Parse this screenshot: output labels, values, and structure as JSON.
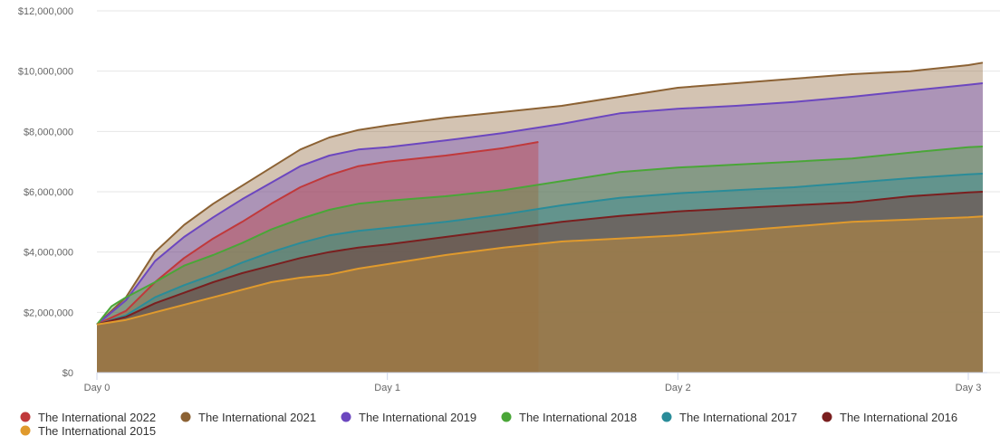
{
  "chart_data": {
    "type": "area",
    "title": "",
    "xlabel": "",
    "ylabel": "",
    "x_categories": [
      "Day 0",
      "Day 1",
      "Day 2",
      "Day 3"
    ],
    "xlim": [
      0,
      3.05
    ],
    "ylim": [
      0,
      12000000
    ],
    "y_ticks": [
      {
        "value": 0,
        "label": "$0"
      },
      {
        "value": 2000000,
        "label": "$2,000,000"
      },
      {
        "value": 4000000,
        "label": "$4,000,000"
      },
      {
        "value": 6000000,
        "label": "$6,000,000"
      },
      {
        "value": 8000000,
        "label": "$8,000,000"
      },
      {
        "value": 10000000,
        "label": "$10,000,000"
      },
      {
        "value": 12000000,
        "label": "$12,000,000"
      }
    ],
    "legend_position": "bottom",
    "series": [
      {
        "name": "The International 2021",
        "color": "#8c6234",
        "x": [
          0,
          0.1,
          0.2,
          0.3,
          0.4,
          0.5,
          0.6,
          0.7,
          0.8,
          0.9,
          1.0,
          1.2,
          1.4,
          1.6,
          1.8,
          2.0,
          2.2,
          2.4,
          2.6,
          2.8,
          3.0,
          3.05
        ],
        "y": [
          1600000,
          2500000,
          4000000,
          4900000,
          5600000,
          6200000,
          6800000,
          7400000,
          7800000,
          8050000,
          8200000,
          8450000,
          8650000,
          8850000,
          9150000,
          9450000,
          9600000,
          9750000,
          9900000,
          10000000,
          10200000,
          10280000
        ]
      },
      {
        "name": "The International 2019",
        "color": "#6c47bf",
        "x": [
          0,
          0.1,
          0.2,
          0.3,
          0.4,
          0.5,
          0.6,
          0.7,
          0.8,
          0.9,
          1.0,
          1.2,
          1.4,
          1.6,
          1.8,
          2.0,
          2.2,
          2.4,
          2.6,
          2.8,
          3.0,
          3.05
        ],
        "y": [
          1600000,
          2400000,
          3700000,
          4500000,
          5150000,
          5750000,
          6300000,
          6850000,
          7200000,
          7400000,
          7480000,
          7700000,
          7950000,
          8250000,
          8600000,
          8750000,
          8850000,
          8980000,
          9150000,
          9350000,
          9550000,
          9600000
        ]
      },
      {
        "name": "The International 2022",
        "color": "#c0393b",
        "x": [
          0,
          0.1,
          0.2,
          0.3,
          0.4,
          0.5,
          0.6,
          0.7,
          0.8,
          0.9,
          1.0,
          1.2,
          1.4,
          1.52
        ],
        "y": [
          1600000,
          2050000,
          3000000,
          3800000,
          4450000,
          5000000,
          5600000,
          6150000,
          6550000,
          6850000,
          7000000,
          7200000,
          7450000,
          7650000
        ]
      },
      {
        "name": "The International 2018",
        "color": "#4aa638",
        "x": [
          0,
          0.05,
          0.1,
          0.2,
          0.3,
          0.4,
          0.5,
          0.6,
          0.7,
          0.8,
          0.9,
          1.0,
          1.2,
          1.4,
          1.6,
          1.8,
          2.0,
          2.2,
          2.4,
          2.6,
          2.8,
          3.0,
          3.05
        ],
        "y": [
          1600000,
          2200000,
          2500000,
          3000000,
          3550000,
          3900000,
          4300000,
          4750000,
          5100000,
          5400000,
          5600000,
          5700000,
          5850000,
          6050000,
          6350000,
          6650000,
          6800000,
          6900000,
          7000000,
          7100000,
          7300000,
          7480000,
          7500000
        ]
      },
      {
        "name": "The International 2017",
        "color": "#2a8c99",
        "x": [
          0,
          0.1,
          0.2,
          0.3,
          0.4,
          0.5,
          0.6,
          0.7,
          0.8,
          0.9,
          1.0,
          1.2,
          1.4,
          1.6,
          1.8,
          2.0,
          2.2,
          2.4,
          2.6,
          2.8,
          3.0,
          3.05
        ],
        "y": [
          1600000,
          1900000,
          2500000,
          2900000,
          3250000,
          3650000,
          4000000,
          4300000,
          4550000,
          4700000,
          4800000,
          5000000,
          5250000,
          5550000,
          5800000,
          5950000,
          6050000,
          6150000,
          6300000,
          6450000,
          6580000,
          6600000
        ]
      },
      {
        "name": "The International 2016",
        "color": "#7a1f1f",
        "x": [
          0,
          0.1,
          0.2,
          0.3,
          0.4,
          0.5,
          0.6,
          0.7,
          0.8,
          0.9,
          1.0,
          1.2,
          1.4,
          1.6,
          1.8,
          2.0,
          2.2,
          2.4,
          2.6,
          2.8,
          3.0,
          3.05
        ],
        "y": [
          1600000,
          1850000,
          2300000,
          2650000,
          3000000,
          3300000,
          3550000,
          3800000,
          4000000,
          4150000,
          4250000,
          4500000,
          4750000,
          5000000,
          5200000,
          5350000,
          5450000,
          5550000,
          5650000,
          5850000,
          5980000,
          6000000
        ]
      },
      {
        "name": "The International 2015",
        "color": "#e09a2d",
        "x": [
          0,
          0.1,
          0.2,
          0.3,
          0.4,
          0.5,
          0.6,
          0.7,
          0.8,
          0.9,
          1.0,
          1.2,
          1.4,
          1.6,
          1.8,
          2.0,
          2.2,
          2.4,
          2.6,
          2.8,
          3.0,
          3.05
        ],
        "y": [
          1600000,
          1750000,
          2000000,
          2250000,
          2500000,
          2750000,
          3000000,
          3150000,
          3250000,
          3450000,
          3600000,
          3900000,
          4150000,
          4350000,
          4450000,
          4550000,
          4700000,
          4850000,
          5000000,
          5080000,
          5150000,
          5180000
        ]
      }
    ],
    "legend": [
      {
        "name": "The International 2022",
        "color": "#c0393b"
      },
      {
        "name": "The International 2021",
        "color": "#8c6234"
      },
      {
        "name": "The International 2019",
        "color": "#6c47bf"
      },
      {
        "name": "The International 2018",
        "color": "#4aa638"
      },
      {
        "name": "The International 2017",
        "color": "#2a8c99"
      },
      {
        "name": "The International 2016",
        "color": "#7a1f1f"
      },
      {
        "name": "The International 2015",
        "color": "#e09a2d"
      }
    ]
  }
}
